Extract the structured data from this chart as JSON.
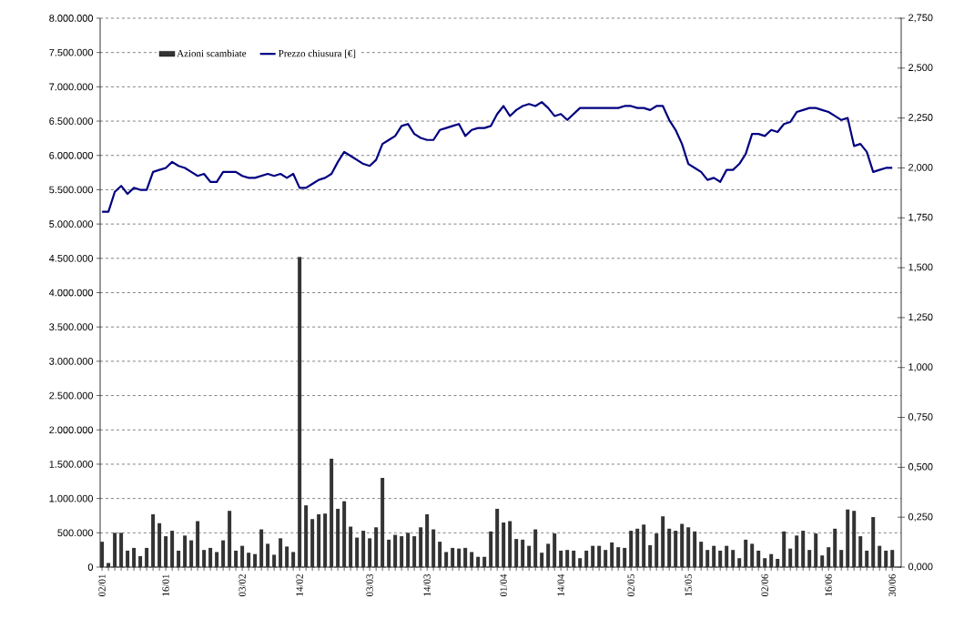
{
  "chart_data": {
    "type": "bar",
    "categories": [
      "02/01",
      null,
      null,
      null,
      null,
      null,
      null,
      null,
      null,
      null,
      "16/01",
      null,
      null,
      null,
      null,
      null,
      null,
      null,
      null,
      null,
      null,
      null,
      "03/02",
      null,
      null,
      null,
      null,
      null,
      null,
      null,
      null,
      "14/02",
      null,
      null,
      null,
      null,
      null,
      null,
      null,
      null,
      null,
      null,
      "03/03",
      null,
      null,
      null,
      null,
      null,
      null,
      null,
      null,
      "14/03",
      null,
      null,
      null,
      null,
      null,
      null,
      null,
      null,
      null,
      null,
      null,
      "01/04",
      null,
      null,
      null,
      null,
      null,
      null,
      null,
      null,
      "14/04",
      null,
      null,
      null,
      null,
      null,
      null,
      null,
      null,
      null,
      null,
      "02/05",
      null,
      null,
      null,
      null,
      null,
      null,
      null,
      null,
      "15/05",
      null,
      null,
      null,
      null,
      null,
      null,
      null,
      null,
      null,
      null,
      null,
      "02/06",
      null,
      null,
      null,
      null,
      null,
      null,
      null,
      null,
      null,
      "16/06",
      null,
      null,
      null,
      null,
      null,
      null,
      null,
      null,
      null,
      "30/06"
    ],
    "series": [
      {
        "name": "Azioni scambiate",
        "color": "#333333",
        "values": [
          370000,
          60000,
          500000,
          500000,
          240000,
          280000,
          160000,
          280000,
          770000,
          640000,
          450000,
          530000,
          240000,
          460000,
          390000,
          670000,
          250000,
          280000,
          220000,
          390000,
          820000,
          240000,
          310000,
          210000,
          190000,
          550000,
          340000,
          180000,
          420000,
          300000,
          220000,
          4520000,
          900000,
          700000,
          770000,
          780000,
          1580000,
          850000,
          960000,
          590000,
          430000,
          530000,
          420000,
          580000,
          1300000,
          400000,
          470000,
          450000,
          500000,
          450000,
          580000,
          770000,
          550000,
          370000,
          220000,
          280000,
          270000,
          280000,
          220000,
          150000,
          150000,
          520000,
          850000,
          650000,
          670000,
          410000,
          400000,
          310000,
          550000,
          210000,
          340000,
          490000,
          240000,
          250000,
          240000,
          130000,
          240000,
          310000,
          310000,
          250000,
          360000,
          290000,
          280000,
          530000,
          560000,
          620000,
          320000,
          490000,
          740000,
          560000,
          530000,
          630000,
          580000,
          520000,
          370000,
          250000,
          310000,
          240000,
          310000,
          250000,
          130000,
          400000,
          340000,
          240000,
          130000,
          190000,
          120000,
          520000,
          270000,
          460000,
          530000,
          250000,
          490000,
          170000,
          290000,
          560000,
          250000,
          840000,
          820000,
          450000,
          240000,
          730000,
          310000,
          240000,
          250000
        ]
      },
      {
        "name": "Prezzo chiusura [€]",
        "type": "line",
        "axis": "y2",
        "color": "#000080",
        "values": [
          1.78,
          1.78,
          1.88,
          1.91,
          1.87,
          1.9,
          1.89,
          1.89,
          1.98,
          1.99,
          2.0,
          2.03,
          2.01,
          2.0,
          1.98,
          1.96,
          1.97,
          1.93,
          1.93,
          1.98,
          1.98,
          1.98,
          1.96,
          1.95,
          1.95,
          1.96,
          1.97,
          1.96,
          1.97,
          1.95,
          1.97,
          1.9,
          1.9,
          1.92,
          1.94,
          1.95,
          1.97,
          2.03,
          2.08,
          2.06,
          2.04,
          2.02,
          2.01,
          2.04,
          2.12,
          2.14,
          2.16,
          2.21,
          2.22,
          2.17,
          2.15,
          2.14,
          2.14,
          2.19,
          2.2,
          2.21,
          2.22,
          2.16,
          2.19,
          2.2,
          2.2,
          2.21,
          2.27,
          2.31,
          2.26,
          2.29,
          2.31,
          2.32,
          2.31,
          2.33,
          2.3,
          2.26,
          2.27,
          2.24,
          2.27,
          2.3,
          2.3,
          2.3,
          2.3,
          2.3,
          2.3,
          2.3,
          2.31,
          2.31,
          2.3,
          2.3,
          2.29,
          2.31,
          2.31,
          2.24,
          2.19,
          2.12,
          2.02,
          2.0,
          1.98,
          1.94,
          1.95,
          1.93,
          1.99,
          1.99,
          2.02,
          2.07,
          2.17,
          2.17,
          2.16,
          2.19,
          2.18,
          2.22,
          2.23,
          2.28,
          2.29,
          2.3,
          2.3,
          2.29,
          2.28,
          2.26,
          2.24,
          2.25,
          2.11,
          2.12,
          2.08,
          1.98,
          1.99,
          2.0,
          2.0
        ]
      }
    ],
    "ylim": [
      0,
      8000000
    ],
    "yticks": [
      {
        "value": 0,
        "label": "0"
      },
      {
        "value": 500000,
        "label": "500.000"
      },
      {
        "value": 1000000,
        "label": "1.000.000"
      },
      {
        "value": 1500000,
        "label": "1.500.000"
      },
      {
        "value": 2000000,
        "label": "2.000.000"
      },
      {
        "value": 2500000,
        "label": "2.500.000"
      },
      {
        "value": 3000000,
        "label": "3.000.000"
      },
      {
        "value": 3500000,
        "label": "3.500.000"
      },
      {
        "value": 4000000,
        "label": "4.000.000"
      },
      {
        "value": 4500000,
        "label": "4.500.000"
      },
      {
        "value": 5000000,
        "label": "5.000.000"
      },
      {
        "value": 5500000,
        "label": "5.500.000"
      },
      {
        "value": 6000000,
        "label": "6.000.000"
      },
      {
        "value": 6500000,
        "label": "6.500.000"
      },
      {
        "value": 7000000,
        "label": "7.000.000"
      },
      {
        "value": 7500000,
        "label": "7.500.000"
      },
      {
        "value": 8000000,
        "label": "8.000.000"
      }
    ],
    "y2lim": [
      0,
      2.75
    ],
    "y2ticks": [
      {
        "value": 0,
        "label": "0,000"
      },
      {
        "value": 0.25,
        "label": "0,250"
      },
      {
        "value": 0.5,
        "label": "0,500"
      },
      {
        "value": 0.75,
        "label": "0,750"
      },
      {
        "value": 1,
        "label": "1,000"
      },
      {
        "value": 1.25,
        "label": "1,250"
      },
      {
        "value": 1.5,
        "label": "1,500"
      },
      {
        "value": 1.75,
        "label": "1,750"
      },
      {
        "value": 2,
        "label": "2,000"
      },
      {
        "value": 2.25,
        "label": "2,250"
      },
      {
        "value": 2.5,
        "label": "2,500"
      },
      {
        "value": 2.75,
        "label": "2,750"
      }
    ],
    "grid": "y",
    "legend": "top"
  }
}
